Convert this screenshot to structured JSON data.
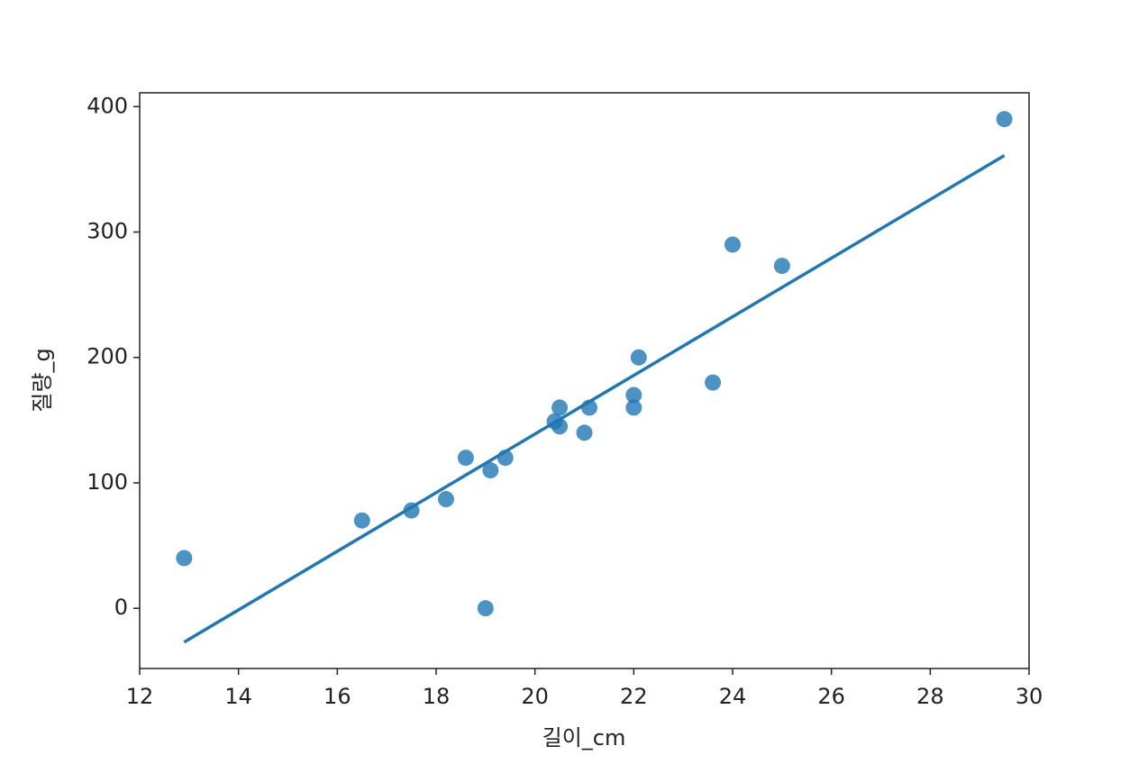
{
  "chart_data": {
    "type": "scatter",
    "xlabel": "길이_cm",
    "ylabel": "질량_g",
    "points": {
      "color": "#1f77b4",
      "x": [
        12.9,
        16.5,
        17.5,
        18.2,
        18.6,
        19.0,
        19.1,
        19.4,
        20.4,
        20.5,
        20.5,
        21.0,
        21.1,
        22.0,
        22.0,
        22.1,
        23.6,
        24.0,
        25.0,
        29.5
      ],
      "values": [
        40,
        70,
        78,
        87,
        120,
        0,
        110,
        120,
        149,
        160,
        145,
        140,
        160,
        160,
        170,
        200,
        180,
        290,
        273,
        390
      ]
    },
    "fit": {
      "color": "#1f77b4",
      "x": [
        12.9,
        29.5
      ],
      "values": [
        -27,
        361
      ]
    },
    "xlim": [
      12,
      30
    ],
    "xticks": [
      12,
      14,
      16,
      18,
      20,
      22,
      24,
      26,
      28,
      30
    ],
    "ylim": [
      -48,
      411
    ],
    "yticks": [
      0,
      100,
      200,
      300,
      400
    ],
    "grid": false
  }
}
